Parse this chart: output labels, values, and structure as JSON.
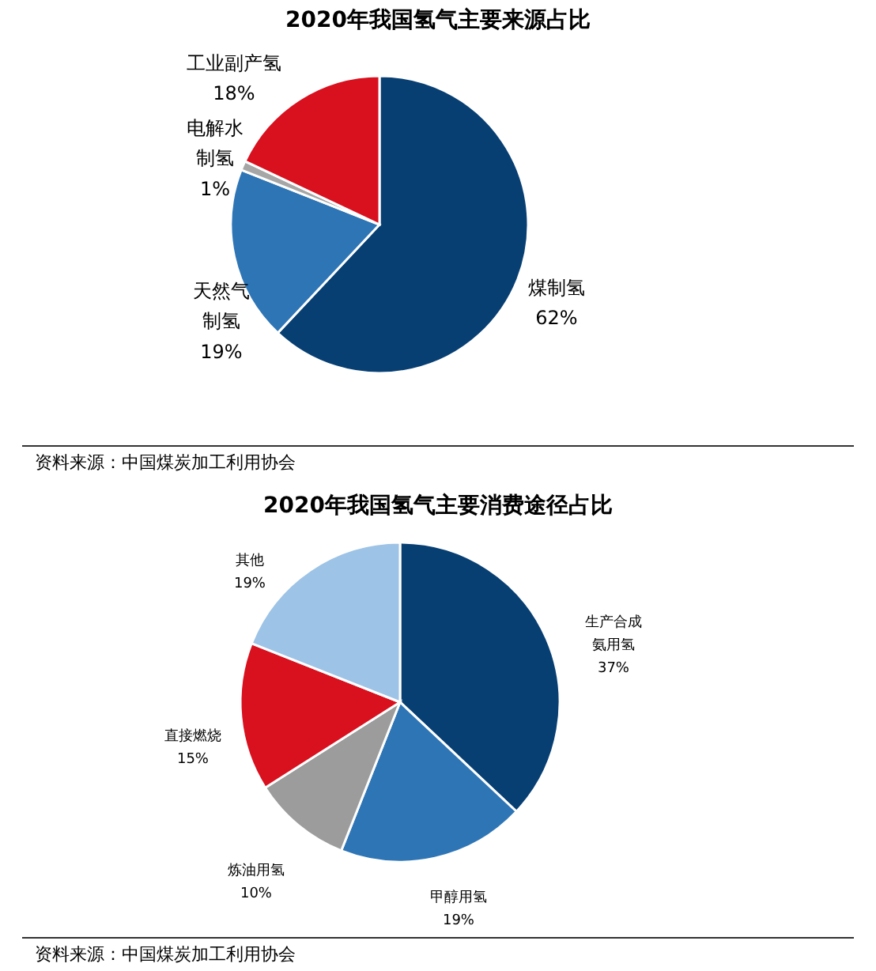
{
  "chart_data": [
    {
      "type": "pie",
      "title": "2020年我国氢气主要来源占比",
      "categories": [
        "煤制氢",
        "天然气制氢",
        "电解水制氢",
        "工业副产氢"
      ],
      "values": [
        62,
        19,
        1,
        18
      ],
      "colors": [
        "#073f73",
        "#2e75b6",
        "#a6a6a6",
        "#d9101e"
      ],
      "value_labels": [
        "62%",
        "19%",
        "1%",
        "18%"
      ],
      "annotations": [
        "资料来源：中国煤炭加工利用协会"
      ]
    },
    {
      "type": "pie",
      "title": "2020年我国氢气主要消费途径占比",
      "categories": [
        "生产合成氨用氢",
        "甲醇用氢",
        "炼油用氢",
        "直接燃烧",
        "其他"
      ],
      "values": [
        37,
        19,
        10,
        15,
        19
      ],
      "colors": [
        "#073f73",
        "#2e75b6",
        "#9c9c9c",
        "#d9101e",
        "#9dc3e6"
      ],
      "value_labels": [
        "37%",
        "19%",
        "10%",
        "15%",
        "19%"
      ],
      "annotations": [
        "资料来源：中国煤炭加工利用协会"
      ]
    }
  ]
}
